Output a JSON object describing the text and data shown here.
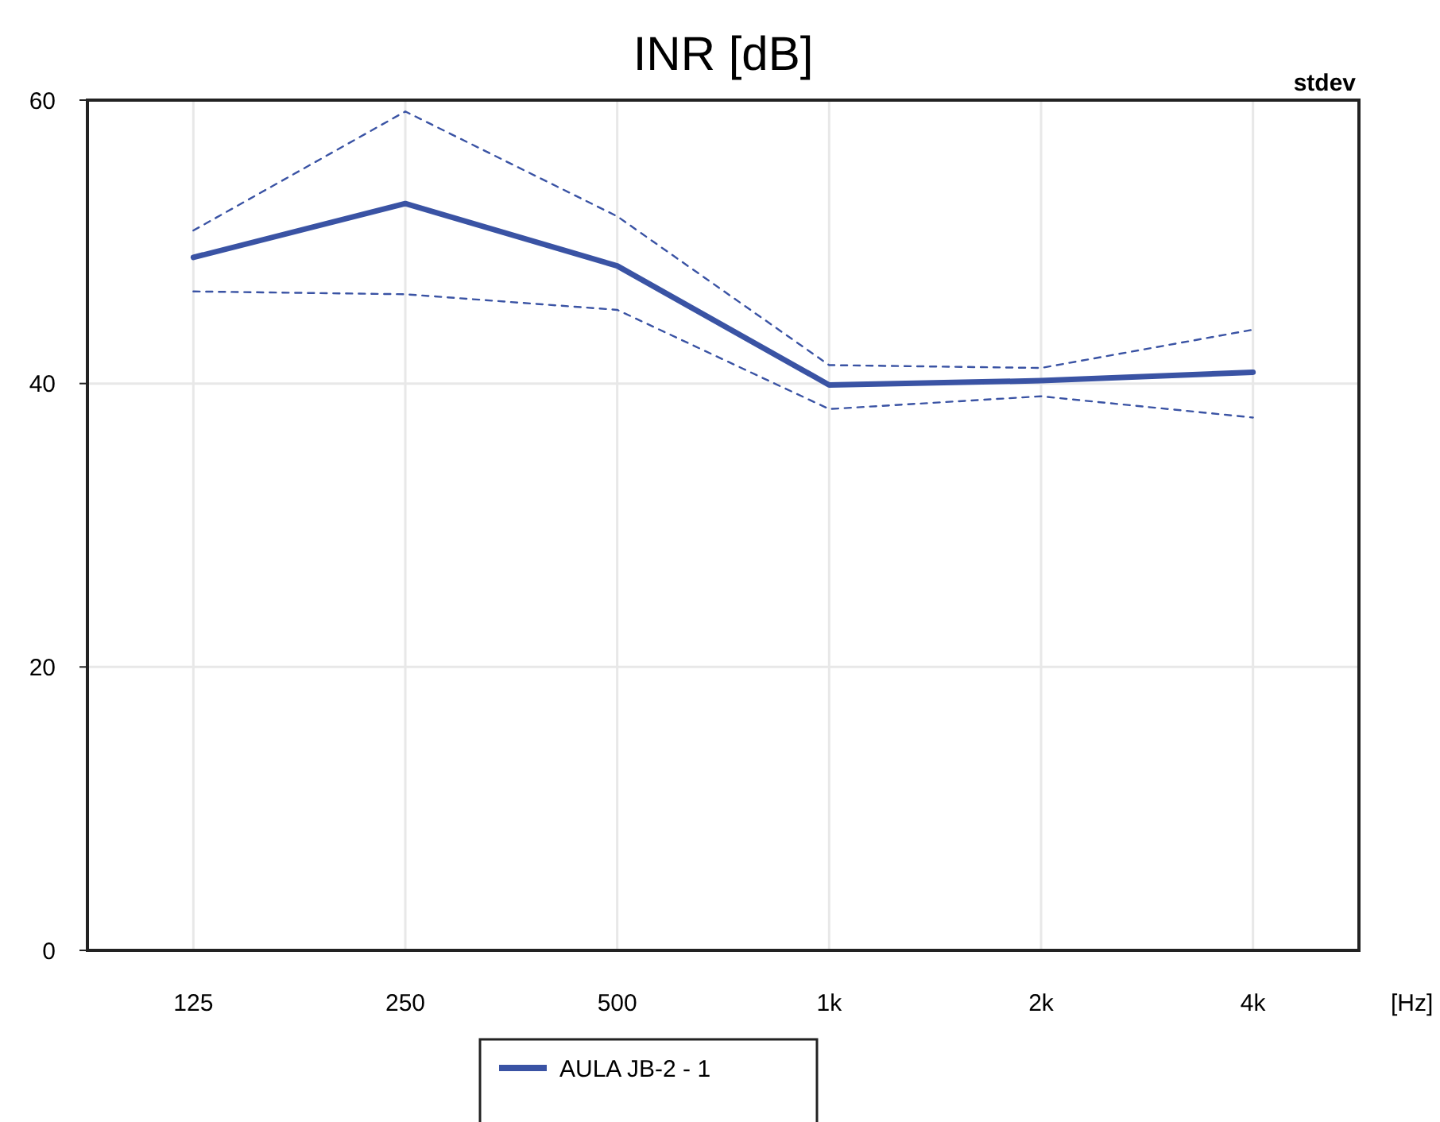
{
  "chart_data": {
    "type": "line",
    "title": "INR [dB]",
    "xlabel": "[Hz]",
    "annotations": [
      "stdev"
    ],
    "categories": [
      "125",
      "250",
      "500",
      "1k",
      "2k",
      "4k"
    ],
    "series": [
      {
        "name": "AULA JB-2 - 1",
        "color": "#3a53a4",
        "values": [
          48.9,
          52.7,
          48.3,
          39.9,
          40.2,
          40.8
        ],
        "line_style": "solid"
      },
      {
        "color": "#3a53a4",
        "values": [
          50.8,
          59.2,
          51.8,
          41.3,
          41.1,
          43.8
        ],
        "line_style": "dashed"
      },
      {
        "color": "#3a53a4",
        "values": [
          46.5,
          46.3,
          45.2,
          38.2,
          39.1,
          37.6
        ],
        "line_style": "dashed"
      }
    ],
    "ylim": [
      0,
      60
    ],
    "yticks": [
      0,
      20,
      40,
      60
    ],
    "grid": true,
    "legend": "bottom",
    "marker": "none"
  }
}
